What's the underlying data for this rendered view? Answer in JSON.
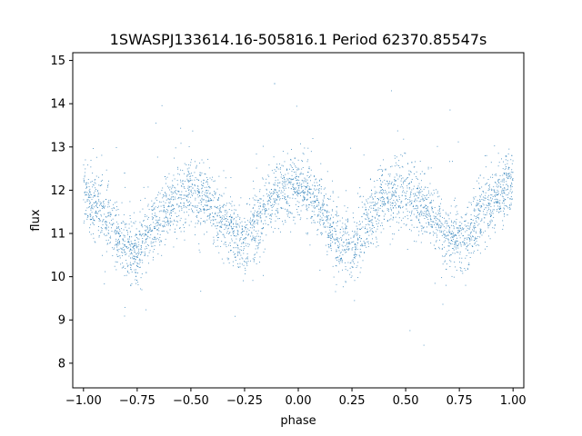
{
  "chart_data": {
    "type": "scatter",
    "title": "1SWASPJ133614.16-505816.1 Period 62370.85547s",
    "xlabel": "phase",
    "ylabel": "flux",
    "xlim": [
      -1.05,
      1.05
    ],
    "ylim": [
      7.43,
      15.18
    ],
    "xticks": [
      -1.0,
      -0.75,
      -0.5,
      -0.25,
      0.0,
      0.25,
      0.5,
      0.75,
      1.0
    ],
    "xtick_labels": [
      "−1.00",
      "−0.75",
      "−0.50",
      "−0.25",
      "0.00",
      "0.25",
      "0.50",
      "0.75",
      "1.00"
    ],
    "yticks": [
      8,
      9,
      10,
      11,
      12,
      13,
      14,
      15
    ],
    "ytick_labels": [
      "8",
      "9",
      "10",
      "11",
      "12",
      "13",
      "14",
      "15"
    ],
    "grid": false,
    "marker_color": "#1f77b4",
    "series": [
      {
        "phase_profile": {
          "x": [
            -1.0,
            -0.9,
            -0.8,
            -0.75,
            -0.7,
            -0.6,
            -0.5,
            -0.4,
            -0.3,
            -0.25,
            -0.2,
            -0.1,
            0.0,
            0.1,
            0.2,
            0.25,
            0.3,
            0.4,
            0.5,
            0.6,
            0.7,
            0.75,
            0.8,
            0.9,
            1.0
          ],
          "y": [
            12.0,
            11.4,
            10.6,
            10.6,
            11.0,
            11.7,
            12.0,
            11.6,
            11.0,
            10.8,
            11.2,
            11.9,
            12.2,
            11.6,
            10.7,
            10.6,
            11.1,
            11.8,
            12.0,
            11.6,
            10.9,
            10.8,
            11.1,
            11.7,
            12.2
          ]
        }
      }
    ]
  }
}
